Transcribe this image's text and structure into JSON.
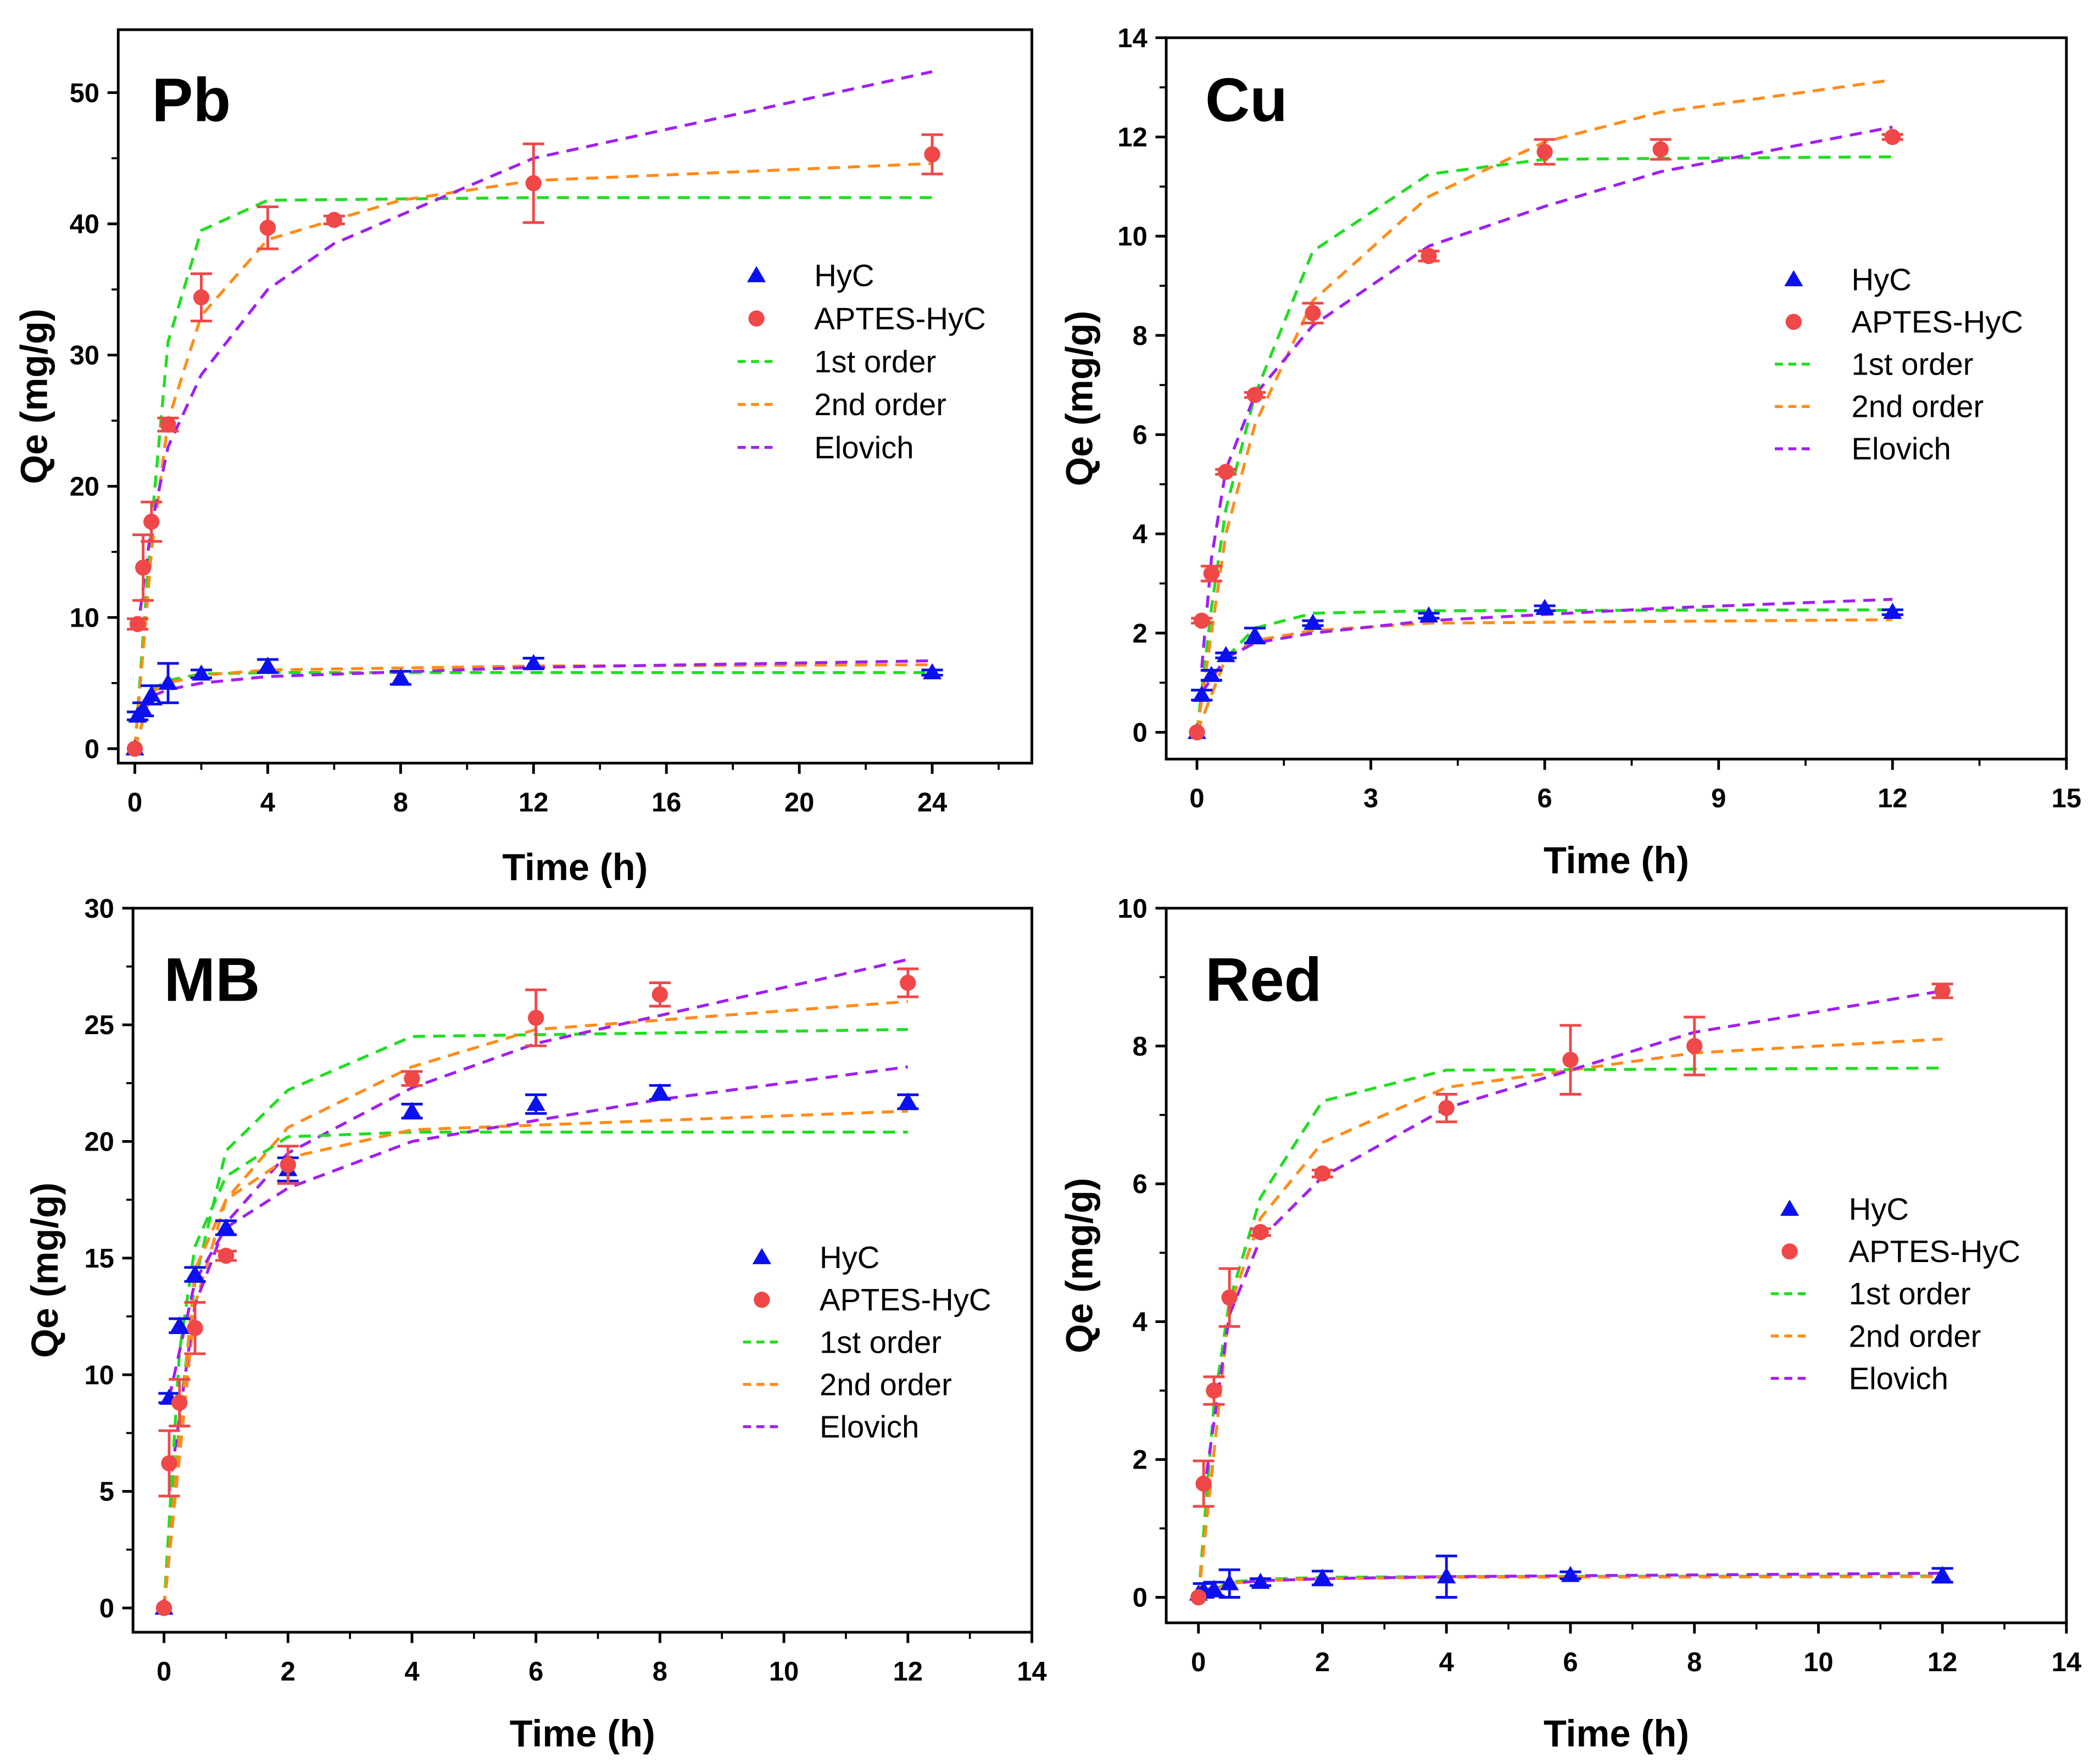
{
  "colors": {
    "HyC": "#0a10f0",
    "APTES": "#f04848",
    "first": "#22dd22",
    "second": "#ff8c1a",
    "elovich": "#a020f0"
  },
  "legend": [
    "HyC",
    "APTES-HyC",
    "1st order",
    "2nd order",
    "Elovich"
  ],
  "chart_data": [
    {
      "type": "scatter",
      "title": "Pb",
      "xlabel": "Time (h)",
      "ylabel": "Qe (mg/g)",
      "xlim": [
        -0.5,
        27
      ],
      "ylim": [
        -1.1,
        54.8
      ],
      "xticks": [
        0,
        4,
        8,
        12,
        16,
        20,
        24
      ],
      "yticks": [
        0,
        10,
        20,
        30,
        40,
        50
      ],
      "series": {
        "HyC": {
          "x": [
            0,
            0.083,
            0.25,
            0.5,
            1,
            2,
            4,
            8,
            12,
            24
          ],
          "y": [
            0,
            2.5,
            3,
            4.1,
            5,
            5.7,
            6.3,
            5.4,
            6.5,
            5.8
          ],
          "err": [
            0,
            0.3,
            0.5,
            0.7,
            1.5,
            0.3,
            0.5,
            0.5,
            0.4,
            0.2
          ]
        },
        "APTES": {
          "x": [
            0,
            0.083,
            0.25,
            0.5,
            1,
            2,
            4,
            6,
            12,
            24
          ],
          "y": [
            0,
            9.5,
            13.8,
            17.3,
            24.7,
            34.4,
            39.7,
            40.3,
            43.1,
            45.3
          ],
          "err": [
            0,
            0.4,
            2.5,
            1.5,
            0.5,
            1.8,
            1.6,
            0.3,
            3,
            1.5
          ]
        },
        "fits": [
          {
            "model": "first",
            "data": "APTES",
            "x": [
              0,
              0.5,
              1,
              2,
              4,
              12,
              24
            ],
            "y": [
              0,
              17,
              31,
              39.5,
              41.8,
              42,
              42
            ]
          },
          {
            "model": "second",
            "data": "APTES",
            "x": [
              0,
              0.5,
              1,
              2,
              4,
              8,
              12,
              24
            ],
            "y": [
              0,
              15,
              25,
              33,
              38.8,
              41.8,
              43.3,
              44.6
            ]
          },
          {
            "model": "elovich",
            "data": "APTES",
            "x": [
              0.083,
              0.5,
              1,
              2,
              4,
              6,
              12,
              24
            ],
            "y": [
              9,
              17,
              23,
              28.5,
              35,
              38.5,
              45,
              51.6
            ]
          },
          {
            "model": "first",
            "data": "HyC",
            "x": [
              0,
              0.5,
              1,
              2,
              4,
              24
            ],
            "y": [
              0,
              4.5,
              5.2,
              5.7,
              5.8,
              5.8
            ]
          },
          {
            "model": "second",
            "data": "HyC",
            "x": [
              0,
              0.5,
              1,
              2,
              4,
              12,
              24
            ],
            "y": [
              0,
              4.3,
              5,
              5.6,
              6,
              6.3,
              6.4
            ]
          },
          {
            "model": "elovich",
            "data": "HyC",
            "x": [
              0.083,
              0.5,
              1,
              2,
              4,
              12,
              24
            ],
            "y": [
              3,
              4,
              4.5,
              5,
              5.5,
              6.2,
              6.7
            ]
          }
        ]
      }
    },
    {
      "type": "scatter",
      "title": "Cu",
      "xlabel": "Time (h)",
      "ylabel": "Qe (mg/g)",
      "xlim": [
        -0.53,
        15
      ],
      "ylim": [
        -0.54,
        14
      ],
      "xticks": [
        0,
        3,
        6,
        9,
        12,
        15
      ],
      "yticks": [
        0,
        2,
        4,
        6,
        8,
        10,
        12,
        14
      ],
      "series": {
        "HyC": {
          "x": [
            0,
            0.083,
            0.25,
            0.5,
            1,
            2,
            4,
            6,
            12
          ],
          "y": [
            0,
            0.75,
            1.15,
            1.55,
            1.95,
            2.2,
            2.35,
            2.5,
            2.42
          ],
          "err": [
            0,
            0.1,
            0.1,
            0.05,
            0.15,
            0.05,
            0.05,
            0.05,
            0.05
          ]
        },
        "APTES": {
          "x": [
            0,
            0.083,
            0.25,
            0.5,
            1,
            2,
            4,
            6,
            8,
            12
          ],
          "y": [
            0,
            2.25,
            3.2,
            5.25,
            6.8,
            8.45,
            9.6,
            11.7,
            11.75,
            12.0
          ],
          "err": [
            0,
            0.05,
            0.15,
            0.05,
            0.05,
            0.2,
            0.1,
            0.25,
            0.2,
            0.05
          ]
        },
        "fits": [
          {
            "model": "first",
            "data": "APTES",
            "x": [
              0,
              0.25,
              0.5,
              1,
              2,
              4,
              5,
              6,
              12
            ],
            "y": [
              0,
              2.5,
              4.5,
              6.8,
              9.7,
              11.25,
              11.4,
              11.55,
              11.6
            ]
          },
          {
            "model": "second",
            "data": "APTES",
            "x": [
              0,
              0.5,
              1,
              2,
              4,
              6,
              8,
              12
            ],
            "y": [
              0,
              4,
              6.2,
              8.7,
              10.8,
              11.9,
              12.5,
              13.15
            ]
          },
          {
            "model": "elovich",
            "data": "APTES",
            "x": [
              0.083,
              0.25,
              0.5,
              1,
              2,
              4,
              6,
              8,
              12
            ],
            "y": [
              1.3,
              3.5,
              5.3,
              6.8,
              8.2,
              9.8,
              10.6,
              11.3,
              12.2
            ]
          },
          {
            "model": "first",
            "data": "HyC",
            "x": [
              0,
              0.5,
              1,
              2,
              4,
              12
            ],
            "y": [
              0,
              1.5,
              2.1,
              2.4,
              2.45,
              2.47
            ]
          },
          {
            "model": "second",
            "data": "HyC",
            "x": [
              0,
              0.5,
              1,
              2,
              4,
              12
            ],
            "y": [
              0,
              1.5,
              1.85,
              2.05,
              2.2,
              2.27
            ]
          },
          {
            "model": "elovich",
            "data": "HyC",
            "x": [
              0.083,
              0.5,
              1,
              2,
              4,
              8,
              12
            ],
            "y": [
              0.8,
              1.5,
              1.8,
              2.0,
              2.25,
              2.5,
              2.68
            ]
          }
        ]
      }
    },
    {
      "type": "scatter",
      "title": "MB",
      "xlabel": "Time (h)",
      "ylabel": "Qe (mg/g)",
      "xlim": [
        -0.5,
        14
      ],
      "ylim": [
        -1.04,
        30
      ],
      "xticks": [
        0,
        2,
        4,
        6,
        8,
        10,
        12,
        14
      ],
      "yticks": [
        0,
        5,
        10,
        15,
        20,
        25,
        30
      ],
      "series": {
        "HyC": {
          "x": [
            0,
            0.083,
            0.25,
            0.5,
            1,
            2,
            4,
            6,
            8,
            12
          ],
          "y": [
            0,
            9,
            12.1,
            14.3,
            16.3,
            18.8,
            21.3,
            21.6,
            22.1,
            21.7
          ],
          "err": [
            0,
            0.2,
            0.3,
            0.3,
            0.3,
            0.5,
            0.3,
            0.4,
            0.3,
            0.3
          ]
        },
        "APTES": {
          "x": [
            0,
            0.083,
            0.25,
            0.5,
            1,
            2,
            4,
            6,
            8,
            12
          ],
          "y": [
            0,
            6.2,
            8.8,
            12,
            15.1,
            19,
            22.7,
            25.3,
            26.3,
            26.8
          ],
          "err": [
            0,
            1.4,
            1,
            1.1,
            0.2,
            0.8,
            0.3,
            1.2,
            0.5,
            0.6
          ]
        },
        "fits": [
          {
            "model": "first",
            "data": "APTES",
            "x": [
              0,
              0.25,
              0.5,
              1,
              2,
              4,
              12
            ],
            "y": [
              0,
              8,
              14,
              19.6,
              22.2,
              24.5,
              24.8
            ]
          },
          {
            "model": "second",
            "data": "APTES",
            "x": [
              0,
              0.5,
              1,
              2,
              4,
              6,
              12
            ],
            "y": [
              0,
              13,
              17.5,
              20.6,
              23.2,
              24.8,
              26
            ]
          },
          {
            "model": "elovich",
            "data": "APTES",
            "x": [
              0.083,
              0.5,
              1,
              2,
              4,
              6,
              12
            ],
            "y": [
              5,
              13,
              16.5,
              19.5,
              22.3,
              24.2,
              27.8
            ]
          },
          {
            "model": "first",
            "data": "HyC",
            "x": [
              0,
              0.25,
              0.5,
              1,
              2,
              4,
              12
            ],
            "y": [
              0,
              11,
              15.5,
              18.5,
              20.2,
              20.4,
              20.4
            ]
          },
          {
            "model": "second",
            "data": "HyC",
            "x": [
              0,
              0.5,
              1,
              2,
              4,
              12
            ],
            "y": [
              0,
              14.5,
              17.5,
              19.3,
              20.5,
              21.3
            ]
          },
          {
            "model": "elovich",
            "data": "HyC",
            "x": [
              0.083,
              0.5,
              1,
              2,
              4,
              8,
              12
            ],
            "y": [
              9,
              14,
              16.3,
              18,
              20,
              21.8,
              23.2
            ]
          }
        ]
      }
    },
    {
      "type": "scatter",
      "title": "Red",
      "xlabel": "Time (h)",
      "ylabel": "Qe (mg/g)",
      "xlim": [
        -0.52,
        14
      ],
      "ylim": [
        -0.37,
        10
      ],
      "xticks": [
        0,
        2,
        4,
        6,
        8,
        10,
        12,
        14
      ],
      "yticks": [
        0,
        2,
        4,
        6,
        8,
        10
      ],
      "series": {
        "HyC": {
          "x": [
            0,
            0.083,
            0.25,
            0.5,
            1,
            2,
            4,
            6,
            12
          ],
          "y": [
            0.05,
            0.1,
            0.12,
            0.2,
            0.22,
            0.28,
            0.3,
            0.32,
            0.32
          ],
          "err": [
            0,
            0.1,
            0.1,
            0.2,
            0.05,
            0.1,
            0.3,
            0.05,
            0.1
          ]
        },
        "APTES": {
          "x": [
            0,
            0.083,
            0.25,
            0.5,
            1,
            2,
            4,
            6,
            8,
            12
          ],
          "y": [
            0,
            1.65,
            3,
            4.35,
            5.3,
            6.15,
            7.1,
            7.8,
            8.0,
            8.8
          ],
          "err": [
            0,
            0.33,
            0.2,
            0.42,
            0.05,
            0.05,
            0.2,
            0.5,
            0.42,
            0.1
          ]
        },
        "fits": [
          {
            "model": "first",
            "data": "APTES",
            "x": [
              0,
              0.25,
              0.5,
              1,
              2,
              4,
              12
            ],
            "y": [
              0,
              2.8,
              4.3,
              5.8,
              7.2,
              7.65,
              7.68
            ]
          },
          {
            "model": "second",
            "data": "APTES",
            "x": [
              0,
              0.5,
              1,
              2,
              4,
              8,
              12
            ],
            "y": [
              0,
              4.2,
              5.5,
              6.6,
              7.4,
              7.9,
              8.1
            ]
          },
          {
            "model": "elovich",
            "data": "APTES",
            "x": [
              0.083,
              0.5,
              1,
              2,
              4,
              8,
              12
            ],
            "y": [
              1.5,
              4.1,
              5.2,
              6.1,
              7.1,
              8.2,
              8.8
            ]
          },
          {
            "model": "first",
            "data": "HyC",
            "x": [
              0,
              0.5,
              1,
              2,
              4,
              12
            ],
            "y": [
              0,
              0.22,
              0.26,
              0.29,
              0.3,
              0.31
            ]
          },
          {
            "model": "second",
            "data": "HyC",
            "x": [
              0,
              0.5,
              1,
              2,
              4,
              12
            ],
            "y": [
              0,
              0.2,
              0.24,
              0.27,
              0.29,
              0.3
            ]
          },
          {
            "model": "elovich",
            "data": "HyC",
            "x": [
              0.083,
              0.5,
              1,
              2,
              4,
              12
            ],
            "y": [
              0.1,
              0.2,
              0.24,
              0.27,
              0.3,
              0.35
            ]
          }
        ]
      }
    }
  ]
}
